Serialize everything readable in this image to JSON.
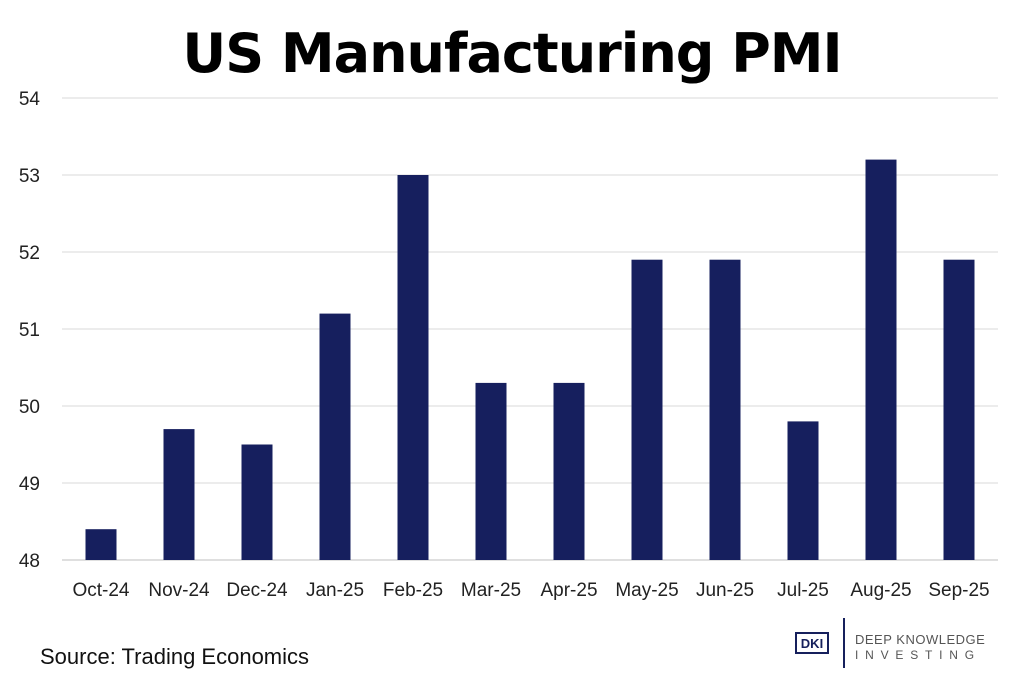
{
  "chart_data": {
    "type": "bar",
    "title": "US Manufacturing PMI",
    "categories": [
      "Oct-24",
      "Nov-24",
      "Dec-24",
      "Jan-25",
      "Feb-25",
      "Mar-25",
      "Apr-25",
      "May-25",
      "Jun-25",
      "Jul-25",
      "Aug-25",
      "Sep-25"
    ],
    "values": [
      48.4,
      49.7,
      49.5,
      51.2,
      53.0,
      50.3,
      50.3,
      51.9,
      51.9,
      49.8,
      53.2,
      51.9
    ],
    "ylim": [
      48,
      54
    ],
    "yticks": [
      "48",
      "49",
      "50",
      "51",
      "52",
      "53",
      "54"
    ],
    "xlabel": "",
    "ylabel": "",
    "grid": true,
    "legend": "none",
    "colors": {
      "bar": "#161f5e",
      "grid": "#d9d9d9",
      "axis": "#bfbfbf"
    }
  },
  "footer": {
    "source": "Source: Trading Economics",
    "logo_mark": "DKI",
    "logo_line1": "DEEP KNOWLEDGE",
    "logo_line2": "INVESTING"
  }
}
